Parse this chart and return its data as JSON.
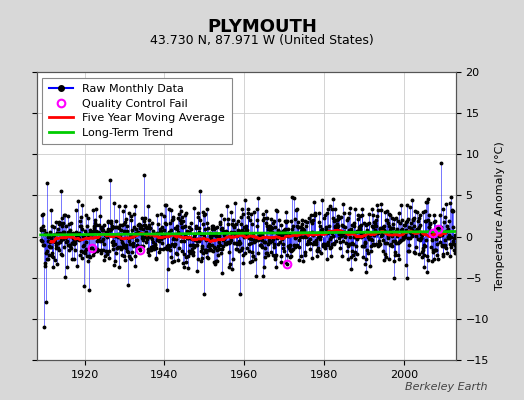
{
  "title": "PLYMOUTH",
  "subtitle": "43.730 N, 87.971 W (United States)",
  "ylabel": "Temperature Anomaly (°C)",
  "ylim": [
    -15,
    20
  ],
  "yticks": [
    -15,
    -10,
    -5,
    0,
    5,
    10,
    15,
    20
  ],
  "xlim": [
    1908,
    2013
  ],
  "xticks": [
    1920,
    1940,
    1960,
    1980,
    2000
  ],
  "start_year": 1909,
  "end_year": 2012,
  "bg_color": "#d8d8d8",
  "plot_bg_color": "#ffffff",
  "raw_line_color": "#0000ff",
  "raw_dot_color": "#000000",
  "qc_color": "#ff00ff",
  "moving_avg_color": "#ff0000",
  "trend_color": "#00cc00",
  "watermark": "Berkeley Earth",
  "seed": 42,
  "title_fontsize": 13,
  "subtitle_fontsize": 9,
  "legend_fontsize": 8,
  "tick_fontsize": 8,
  "ylabel_fontsize": 8
}
